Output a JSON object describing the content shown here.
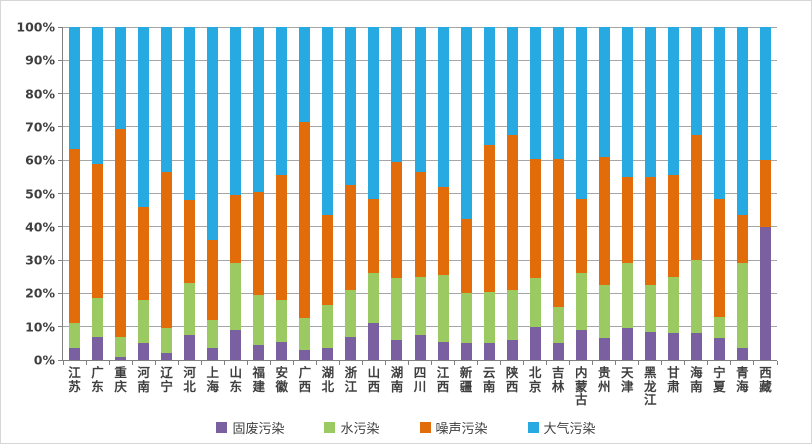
{
  "chart_data": {
    "type": "bar",
    "stacked": true,
    "percent_stacked": true,
    "title": "",
    "xlabel": "",
    "ylabel": "",
    "grid": true,
    "legend_position": "bottom",
    "categories": [
      "江苏",
      "广东",
      "重庆",
      "河南",
      "辽宁",
      "河北",
      "上海",
      "山东",
      "福建",
      "安徽",
      "广西",
      "湖北",
      "浙江",
      "山西",
      "湖南",
      "四川",
      "江西",
      "新疆",
      "云南",
      "陕西",
      "北京",
      "吉林",
      "内蒙古",
      "贵州",
      "天津",
      "黑龙江",
      "甘肃",
      "海南",
      "宁夏",
      "青海",
      "西藏"
    ],
    "series": [
      {
        "name": "固废污染",
        "color": "#7a60a0",
        "values": [
          3.5,
          7,
          1,
          5,
          2,
          7.5,
          3.5,
          9,
          4.5,
          5.5,
          3,
          3.5,
          7,
          11,
          6,
          7.5,
          5.5,
          5,
          5,
          6,
          10,
          5,
          9,
          6.5,
          9.5,
          8.5,
          8,
          8,
          6.5,
          3.5,
          40
        ]
      },
      {
        "name": "水污染",
        "color": "#9bca63",
        "values": [
          7.5,
          11.5,
          6,
          13,
          7.5,
          15.5,
          8.5,
          20,
          15,
          12.5,
          9.5,
          13,
          14,
          15,
          18.5,
          17.5,
          20,
          15,
          15.5,
          15,
          14.5,
          11,
          17,
          16,
          19.5,
          14,
          17,
          22,
          6.5,
          25.5,
          0
        ]
      },
      {
        "name": "噪声污染",
        "color": "#e36c0a",
        "values": [
          52.5,
          40.5,
          62.5,
          28,
          47,
          25,
          24,
          20.5,
          31,
          37.5,
          59,
          27,
          31.5,
          22.5,
          35,
          31.5,
          26.5,
          22.5,
          44,
          46.5,
          36,
          44.5,
          22.5,
          38.5,
          26,
          32.5,
          30.5,
          37.5,
          35.5,
          14.5,
          20
        ]
      },
      {
        "name": "大气污染",
        "color": "#27a9e1",
        "values": [
          36.5,
          41,
          30.5,
          54,
          43.5,
          52,
          64,
          50.5,
          49.5,
          44.5,
          28.5,
          56.5,
          47.5,
          51.5,
          40.5,
          43.5,
          48,
          57.5,
          35.5,
          32.5,
          39.5,
          39.5,
          51.5,
          39,
          45,
          45,
          44.5,
          32.5,
          51.5,
          56.5,
          40
        ]
      }
    ],
    "y_axis": {
      "min": 0,
      "max": 100,
      "step": 10,
      "tick_labels": [
        "0%",
        "10%",
        "20%",
        "30%",
        "40%",
        "50%",
        "60%",
        "70%",
        "80%",
        "90%",
        "100%"
      ]
    }
  },
  "legend": {
    "items": [
      {
        "label": "固废污染",
        "color": "#7a60a0"
      },
      {
        "label": "水污染",
        "color": "#9bca63"
      },
      {
        "label": "噪声污染",
        "color": "#e36c0a"
      },
      {
        "label": "大气污染",
        "color": "#27a9e1"
      }
    ]
  }
}
